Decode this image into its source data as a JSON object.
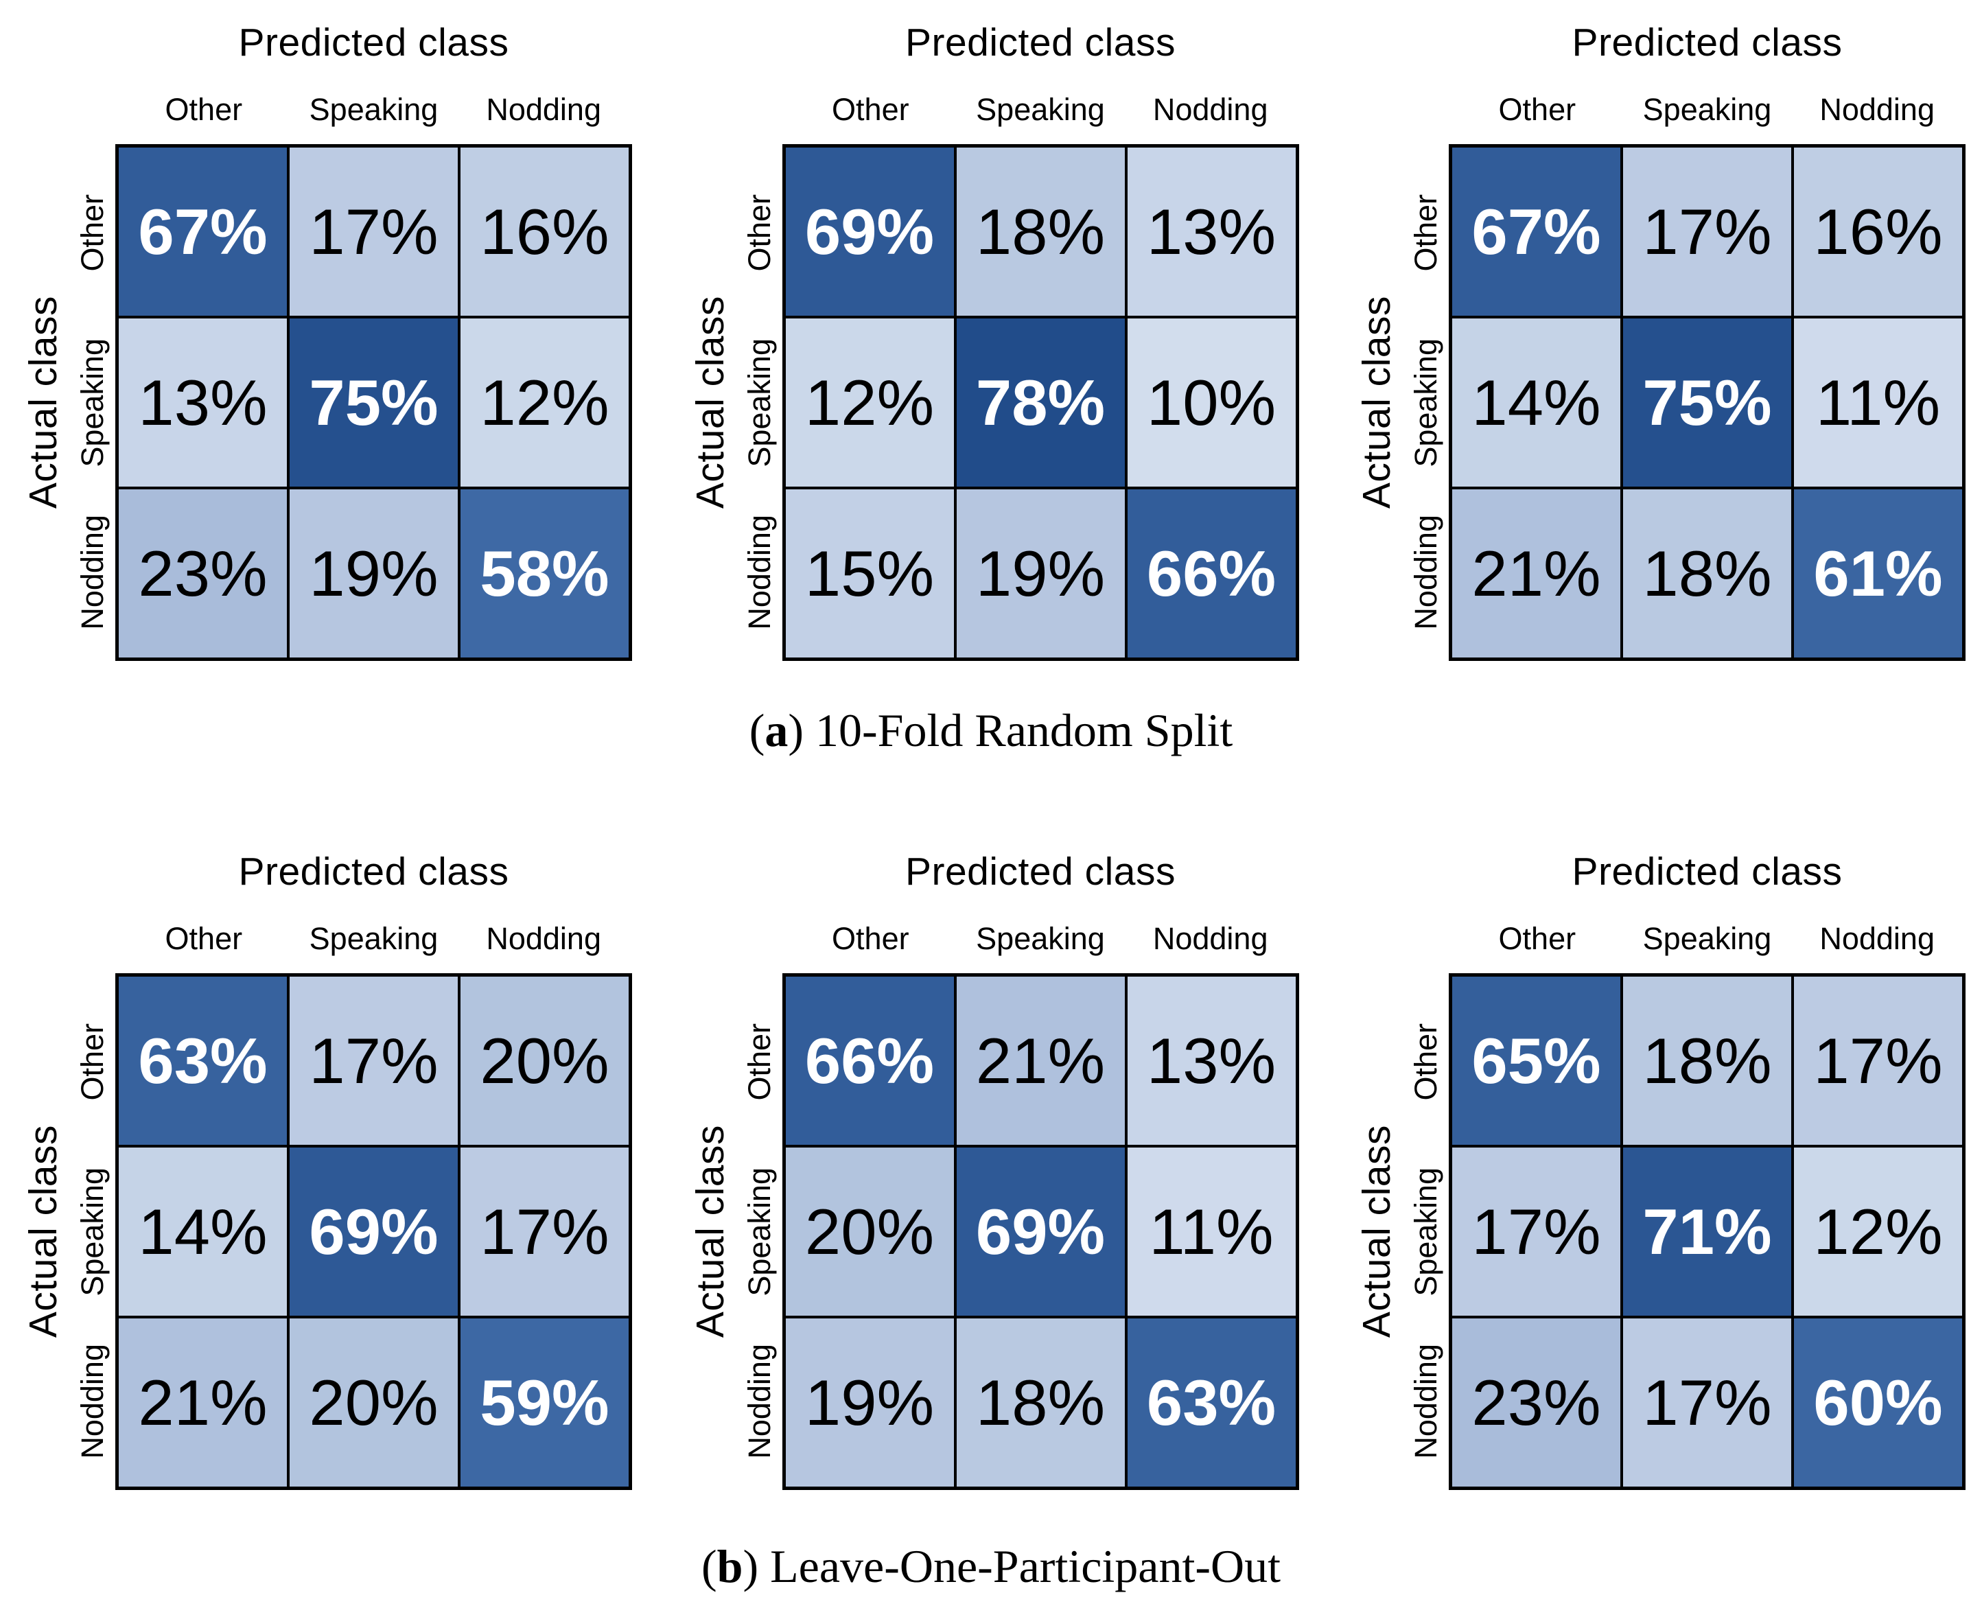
{
  "figure_type": "confusion-matrix-figure",
  "value_suffix": "%",
  "axis": {
    "x_title": "Predicted class",
    "y_title": "Actual class"
  },
  "classes": [
    "Other",
    "Speaking",
    "Nodding"
  ],
  "colors": {
    "background": "#ffffff",
    "grid_line": "#000000",
    "cell_text_dark": "#000000",
    "cell_text_light": "#ffffff",
    "white_text_threshold": 50,
    "colormap_anchors": [
      [
        8,
        "#d8e2f0"
      ],
      [
        23,
        "#a9bcda"
      ],
      [
        58,
        "#3e69a5"
      ],
      [
        80,
        "#1e4987"
      ]
    ]
  },
  "captions": [
    {
      "letter": "a",
      "text": "10-Fold Random Split"
    },
    {
      "letter": "b",
      "text": "Leave-One-Participant-Out"
    }
  ],
  "chart_data": [
    {
      "type": "heatmap",
      "group": "a",
      "group_caption": "10-Fold Random Split",
      "xlabel": "Predicted class",
      "ylabel": "Actual class",
      "x_labels": [
        "Other",
        "Speaking",
        "Nodding"
      ],
      "y_labels": [
        "Other",
        "Speaking",
        "Nodding"
      ],
      "values_percent": [
        [
          67,
          17,
          16
        ],
        [
          13,
          75,
          12
        ],
        [
          23,
          19,
          58
        ]
      ]
    },
    {
      "type": "heatmap",
      "group": "a",
      "group_caption": "10-Fold Random Split",
      "xlabel": "Predicted class",
      "ylabel": "Actual class",
      "x_labels": [
        "Other",
        "Speaking",
        "Nodding"
      ],
      "y_labels": [
        "Other",
        "Speaking",
        "Nodding"
      ],
      "values_percent": [
        [
          69,
          18,
          13
        ],
        [
          12,
          78,
          10
        ],
        [
          15,
          19,
          66
        ]
      ]
    },
    {
      "type": "heatmap",
      "group": "a",
      "group_caption": "10-Fold Random Split",
      "xlabel": "Predicted class",
      "ylabel": "Actual class",
      "x_labels": [
        "Other",
        "Speaking",
        "Nodding"
      ],
      "y_labels": [
        "Other",
        "Speaking",
        "Nodding"
      ],
      "values_percent": [
        [
          67,
          17,
          16
        ],
        [
          14,
          75,
          11
        ],
        [
          21,
          18,
          61
        ]
      ]
    },
    {
      "type": "heatmap",
      "group": "b",
      "group_caption": "Leave-One-Participant-Out",
      "xlabel": "Predicted class",
      "ylabel": "Actual class",
      "x_labels": [
        "Other",
        "Speaking",
        "Nodding"
      ],
      "y_labels": [
        "Other",
        "Speaking",
        "Nodding"
      ],
      "values_percent": [
        [
          63,
          17,
          20
        ],
        [
          14,
          69,
          17
        ],
        [
          21,
          20,
          59
        ]
      ]
    },
    {
      "type": "heatmap",
      "group": "b",
      "group_caption": "Leave-One-Participant-Out",
      "xlabel": "Predicted class",
      "ylabel": "Actual class",
      "x_labels": [
        "Other",
        "Speaking",
        "Nodding"
      ],
      "y_labels": [
        "Other",
        "Speaking",
        "Nodding"
      ],
      "values_percent": [
        [
          66,
          21,
          13
        ],
        [
          20,
          69,
          11
        ],
        [
          19,
          18,
          63
        ]
      ]
    },
    {
      "type": "heatmap",
      "group": "b",
      "group_caption": "Leave-One-Participant-Out",
      "xlabel": "Predicted class",
      "ylabel": "Actual class",
      "x_labels": [
        "Other",
        "Speaking",
        "Nodding"
      ],
      "y_labels": [
        "Other",
        "Speaking",
        "Nodding"
      ],
      "values_percent": [
        [
          65,
          18,
          17
        ],
        [
          17,
          71,
          12
        ],
        [
          23,
          17,
          60
        ]
      ]
    }
  ]
}
